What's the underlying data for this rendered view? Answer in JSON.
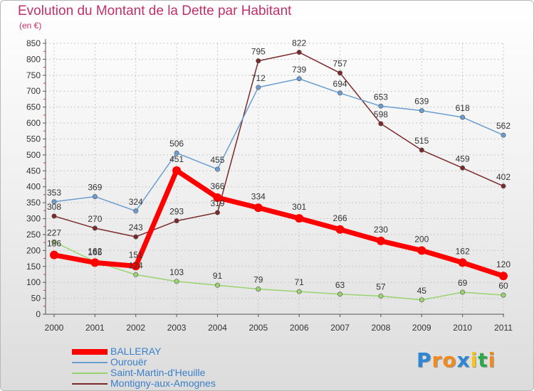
{
  "chart_data": {
    "type": "line",
    "title": "Evolution du Montant de la Dette par Habitant",
    "subtitle": "(en €)",
    "x": [
      "2000",
      "2001",
      "2002",
      "2003",
      "2004",
      "2005",
      "2006",
      "2007",
      "2008",
      "2009",
      "2010",
      "2011"
    ],
    "ylim": [
      0,
      850
    ],
    "yticks": [
      0,
      50,
      100,
      150,
      200,
      250,
      300,
      350,
      400,
      450,
      500,
      550,
      600,
      650,
      700,
      750,
      800,
      850
    ],
    "grid": true,
    "legend_position": "bottom-left",
    "series": [
      {
        "name": "BALLERAY",
        "color": "#ff0000",
        "values": [
          186,
          162,
          151,
          451,
          366,
          334,
          301,
          266,
          230,
          200,
          162,
          120
        ]
      },
      {
        "name": "Ourouër",
        "color": "#6a9ed0",
        "values": [
          353,
          369,
          324,
          506,
          455,
          712,
          739,
          694,
          653,
          639,
          618,
          562
        ]
      },
      {
        "name": "Saint-Martin-d'Heuille",
        "color": "#98d36e",
        "values": [
          227,
          165,
          124,
          103,
          91,
          79,
          71,
          63,
          57,
          45,
          69,
          60
        ]
      },
      {
        "name": "Montigny-aux-Amognes",
        "color": "#7a2a2a",
        "values": [
          308,
          270,
          243,
          293,
          319,
          795,
          822,
          757,
          598,
          515,
          459,
          402
        ]
      }
    ]
  },
  "logo": {
    "letters": [
      {
        "ch": "P",
        "color": "#2e86d6"
      },
      {
        "ch": "r",
        "color": "#f08a1e"
      },
      {
        "ch": "o",
        "color": "#f08a1e"
      },
      {
        "ch": "x",
        "color": "#2e86d6"
      },
      {
        "ch": "i",
        "color": "#f5c518"
      },
      {
        "ch": "t",
        "color": "#2ea84a"
      },
      {
        "ch": "i",
        "color": "#f08a1e"
      }
    ]
  }
}
